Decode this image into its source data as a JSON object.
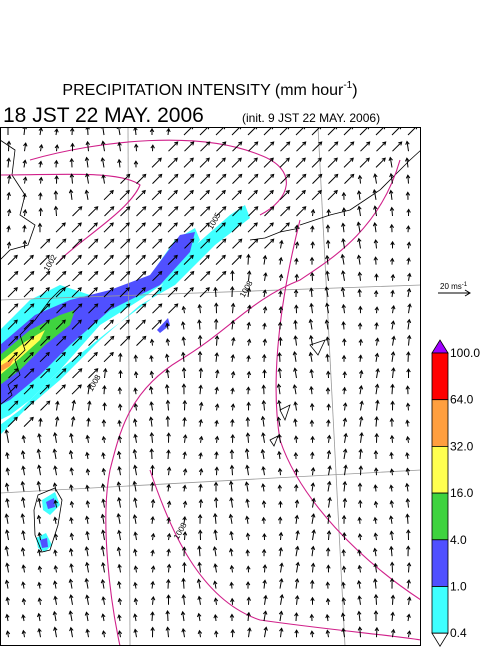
{
  "header": {
    "title": "PRECIPITATION INTENSITY (mm hour",
    "title_exponent": "-1",
    "title_end": ")",
    "valid_time": "18 JST 22 MAY. 2006",
    "init_time": "(init. 9 JST 22 MAY. 2006)"
  },
  "wind_scale": {
    "label": "20 ms",
    "exponent": "-1"
  },
  "isobar_labels": [
    "1002",
    "1005",
    "1008",
    "1008",
    "1008"
  ],
  "colorbar": {
    "labels": [
      "100.0",
      "64.0",
      "32.0",
      "16.0",
      "4.0",
      "1.0",
      "0.4"
    ],
    "colors": [
      "#a000ff",
      "#ff0000",
      "#ff9f3f",
      "#ffff4f",
      "#3fd33f",
      "#5050ff",
      "#3fffff",
      "#ffffff"
    ]
  }
}
